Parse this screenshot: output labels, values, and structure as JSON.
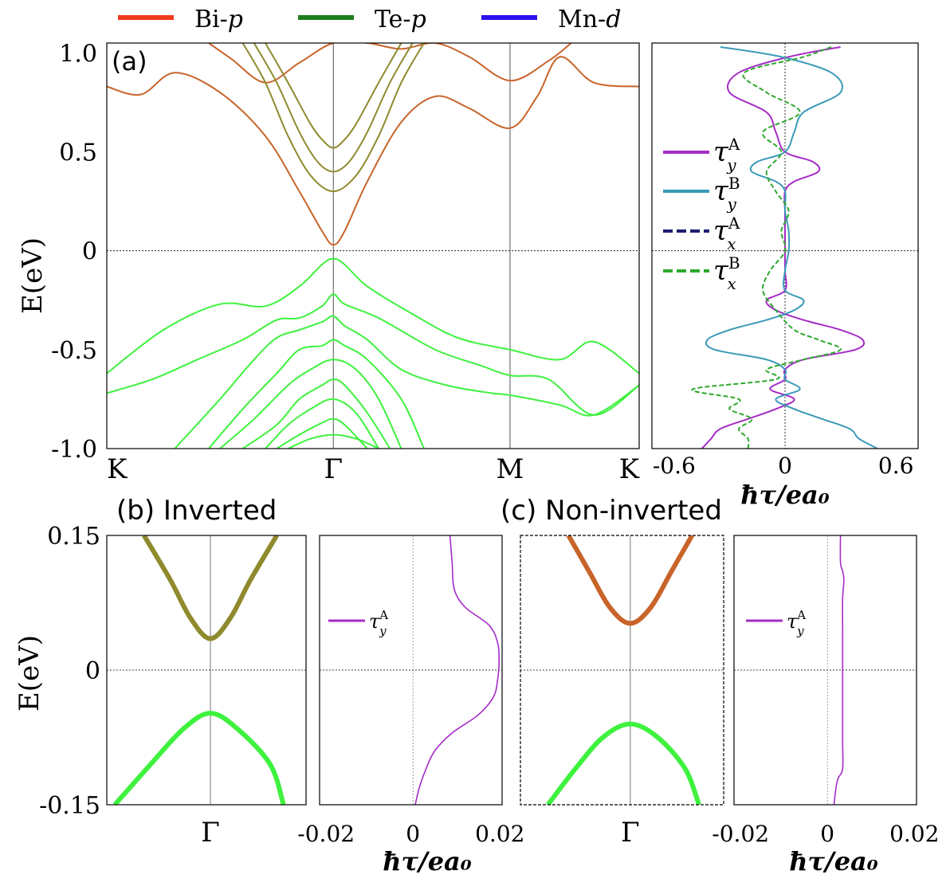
{
  "legend": {
    "items": [
      {
        "name": "Bi-",
        "italic": "p",
        "color": "#f03a1e"
      },
      {
        "name": "Te-",
        "italic": "p",
        "color": "#1e7d1e"
      },
      {
        "name": "Mn-",
        "italic": "d",
        "color": "#2b10f0"
      }
    ]
  },
  "colors": {
    "orange": "#c8642a",
    "olive": "#8f8a2e",
    "green": "#3ef23e",
    "magenta": "#a52cc7",
    "cyan": "#3a9ab8",
    "navy": "#1e1e70",
    "dgreen": "#2ea82e"
  },
  "torque_legend": {
    "ty_A": {
      "base": "τ",
      "sub": "y",
      "sup": "A"
    },
    "ty_B": {
      "base": "τ",
      "sub": "y",
      "sup": "B"
    },
    "tx_A": {
      "base": "τ",
      "sub": "x",
      "sup": "A"
    },
    "tx_B": {
      "base": "τ",
      "sub": "x",
      "sup": "B"
    }
  },
  "chart_data": [
    {
      "id": "a",
      "type": "line",
      "panel_label": "(a)",
      "ylabel": "E(eV)",
      "ylim": [
        -1.0,
        1.05
      ],
      "ytick_labels": [
        "1.0",
        "0.5",
        "0",
        "-0.5",
        "-1.0"
      ],
      "ytick_values": [
        1.0,
        0.5,
        0,
        -0.5,
        -1.0
      ],
      "xtick_labels": [
        "K",
        "Γ",
        "M",
        "K"
      ],
      "xtick_positions": [
        0,
        1,
        1.78,
        2.35
      ],
      "series": [
        {
          "name": "CB1",
          "color": "orange",
          "x": [
            0,
            0.15,
            0.3,
            0.5,
            0.7,
            0.85,
            0.95,
            1.0,
            1.05,
            1.15,
            1.3,
            1.45,
            1.6,
            1.78,
            1.9,
            2.0,
            2.15,
            2.35
          ],
          "y": [
            0.83,
            0.79,
            0.9,
            0.8,
            0.58,
            0.3,
            0.1,
            0.03,
            0.1,
            0.35,
            0.65,
            0.78,
            0.72,
            0.62,
            0.78,
            0.98,
            0.85,
            0.83
          ]
        },
        {
          "name": "CB1b",
          "color": "orange",
          "x": [
            0.45,
            0.55,
            0.7,
            0.85,
            1.0,
            1.15,
            1.3,
            1.45,
            1.6,
            1.78,
            1.95,
            2.05
          ],
          "y": [
            1.05,
            0.97,
            0.85,
            0.95,
            1.05,
            1.05,
            1.02,
            1.05,
            0.98,
            0.86,
            0.96,
            1.05
          ]
        },
        {
          "name": "CB2",
          "color": "olive",
          "x": [
            0.6,
            0.7,
            0.8,
            0.9,
            1.0,
            1.1,
            1.2,
            1.3,
            1.4
          ],
          "y": [
            1.05,
            0.85,
            0.58,
            0.38,
            0.3,
            0.38,
            0.58,
            0.85,
            1.05
          ]
        },
        {
          "name": "CB3",
          "color": "olive",
          "x": [
            0.65,
            0.75,
            0.85,
            0.93,
            1.0,
            1.07,
            1.15,
            1.25,
            1.35
          ],
          "y": [
            1.05,
            0.85,
            0.6,
            0.45,
            0.4,
            0.45,
            0.6,
            0.85,
            1.05
          ]
        },
        {
          "name": "CB4",
          "color": "olive",
          "x": [
            0.7,
            0.8,
            0.9,
            0.96,
            1.0,
            1.04,
            1.1,
            1.2,
            1.3
          ],
          "y": [
            1.05,
            0.85,
            0.64,
            0.55,
            0.52,
            0.55,
            0.64,
            0.85,
            1.05
          ]
        },
        {
          "name": "VB1",
          "color": "green",
          "x": [
            0,
            0.25,
            0.5,
            0.7,
            0.85,
            0.95,
            1.0,
            1.05,
            1.15,
            1.35,
            1.55,
            1.78,
            2.0,
            2.15,
            2.35
          ],
          "y": [
            -0.62,
            -0.4,
            -0.27,
            -0.28,
            -0.18,
            -0.07,
            -0.04,
            -0.07,
            -0.18,
            -0.32,
            -0.44,
            -0.5,
            -0.55,
            -0.46,
            -0.62
          ]
        },
        {
          "name": "VB2",
          "color": "green",
          "x": [
            0,
            0.2,
            0.4,
            0.6,
            0.75,
            0.85,
            0.95,
            1.0,
            1.05,
            1.2,
            1.45,
            1.65,
            1.78,
            1.95,
            2.15,
            2.35
          ],
          "y": [
            -0.72,
            -0.65,
            -0.55,
            -0.45,
            -0.35,
            -0.34,
            -0.28,
            -0.22,
            -0.27,
            -0.34,
            -0.5,
            -0.58,
            -0.63,
            -0.65,
            -0.83,
            -0.68
          ]
        },
        {
          "name": "VB3",
          "color": "green",
          "x": [
            0.3,
            0.5,
            0.65,
            0.75,
            0.85,
            0.95,
            1.0,
            1.05,
            1.15,
            1.3,
            1.5,
            1.7,
            1.78,
            2.0,
            2.15,
            2.35
          ],
          "y": [
            -1.0,
            -0.75,
            -0.55,
            -0.44,
            -0.4,
            -0.36,
            -0.33,
            -0.38,
            -0.45,
            -0.6,
            -0.68,
            -0.72,
            -0.73,
            -0.78,
            -0.83,
            -0.68
          ]
        },
        {
          "name": "VB4",
          "color": "green",
          "x": [
            0.45,
            0.6,
            0.75,
            0.85,
            0.95,
            1.0,
            1.05,
            1.15,
            1.3,
            1.4
          ],
          "y": [
            -1.0,
            -0.8,
            -0.62,
            -0.5,
            -0.48,
            -0.45,
            -0.48,
            -0.55,
            -0.75,
            -1.0
          ]
        },
        {
          "name": "VB5",
          "color": "green",
          "x": [
            0.5,
            0.65,
            0.8,
            0.9,
            1.0,
            1.1,
            1.2,
            1.3
          ],
          "y": [
            -1.0,
            -0.85,
            -0.68,
            -0.6,
            -0.55,
            -0.6,
            -0.75,
            -1.0
          ]
        },
        {
          "name": "VB6",
          "color": "green",
          "x": [
            0.6,
            0.75,
            0.85,
            0.95,
            1.0,
            1.05,
            1.15,
            1.25
          ],
          "y": [
            -1.0,
            -0.88,
            -0.75,
            -0.68,
            -0.65,
            -0.68,
            -0.82,
            -1.0
          ]
        },
        {
          "name": "VB7",
          "color": "green",
          "x": [
            0.7,
            0.8,
            0.9,
            1.0,
            1.1,
            1.2
          ],
          "y": [
            -1.0,
            -0.88,
            -0.8,
            -0.75,
            -0.82,
            -1.0
          ]
        },
        {
          "name": "VB8",
          "color": "green",
          "x": [
            0.75,
            0.85,
            0.95,
            1.0,
            1.05,
            1.15
          ],
          "y": [
            -1.0,
            -0.93,
            -0.87,
            -0.85,
            -0.88,
            -1.0
          ]
        },
        {
          "name": "VB9",
          "color": "green",
          "x": [
            0.8,
            0.9,
            1.0,
            1.1,
            1.2
          ],
          "y": [
            -1.0,
            -0.95,
            -0.93,
            -0.95,
            -1.0
          ]
        }
      ]
    },
    {
      "id": "a-torque",
      "type": "line",
      "xlabel": "ħτ/ea₀",
      "xlim": [
        -0.72,
        0.72
      ],
      "ylim": [
        -1.0,
        1.05
      ],
      "xtick_labels": [
        "-0.6",
        "0",
        "0.6"
      ],
      "xtick_values": [
        -0.6,
        0,
        0.6
      ],
      "series": [
        {
          "name": "τ_y^A",
          "color": "magenta",
          "dash": false,
          "y": [
            1.03,
            0.98,
            0.9,
            0.8,
            0.7,
            0.6,
            0.5,
            0.45,
            0.4,
            0.35,
            0.3,
            0.2,
            0.1,
            0.0,
            -0.1,
            -0.2,
            -0.25,
            -0.3,
            -0.35,
            -0.4,
            -0.45,
            -0.5,
            -0.55,
            -0.6,
            -0.65,
            -0.7,
            -0.75,
            -0.8,
            -0.85,
            -0.9,
            -0.95,
            -1.0
          ],
          "x": [
            0.3,
            0.02,
            -0.25,
            -0.3,
            -0.1,
            -0.05,
            0.0,
            0.15,
            0.18,
            0.05,
            0.0,
            0.0,
            0.0,
            0.0,
            0.0,
            0.0,
            -0.1,
            -0.05,
            0.1,
            0.3,
            0.42,
            0.38,
            0.1,
            0.0,
            0.0,
            -0.08,
            0.05,
            -0.05,
            -0.2,
            -0.35,
            -0.4,
            -0.45
          ]
        },
        {
          "name": "τ_y^B",
          "color": "cyan",
          "dash": false,
          "y": [
            1.03,
            0.98,
            0.9,
            0.8,
            0.7,
            0.6,
            0.5,
            0.45,
            0.4,
            0.35,
            0.3,
            0.2,
            0.1,
            0.0,
            -0.1,
            -0.2,
            -0.25,
            -0.3,
            -0.35,
            -0.4,
            -0.45,
            -0.5,
            -0.55,
            -0.6,
            -0.65,
            -0.7,
            -0.75,
            -0.8,
            -0.85,
            -0.9,
            -0.95,
            -1.0
          ],
          "x": [
            -0.35,
            -0.02,
            0.25,
            0.3,
            0.1,
            0.05,
            0.0,
            -0.15,
            -0.18,
            -0.05,
            0.0,
            0.0,
            0.02,
            0.02,
            0.0,
            0.0,
            0.1,
            0.05,
            -0.1,
            -0.3,
            -0.42,
            -0.38,
            -0.1,
            0.0,
            0.0,
            0.08,
            -0.05,
            0.05,
            0.2,
            0.35,
            0.4,
            0.5
          ]
        },
        {
          "name": "τ_x^A",
          "color": "navy",
          "dash": true,
          "y": [
            0.0
          ],
          "x": [
            0.0
          ]
        },
        {
          "name": "τ_x^B",
          "color": "dgreen",
          "dash": true,
          "y": [
            1.03,
            0.98,
            0.9,
            0.8,
            0.7,
            0.6,
            0.5,
            0.4,
            0.3,
            0.2,
            0.1,
            0.0,
            -0.1,
            -0.2,
            -0.3,
            -0.4,
            -0.45,
            -0.5,
            -0.55,
            -0.6,
            -0.65,
            -0.7,
            -0.75,
            -0.8,
            -0.85,
            -0.9,
            -0.95,
            -1.0
          ],
          "x": [
            0.25,
            0.1,
            -0.22,
            -0.1,
            0.08,
            -0.12,
            -0.02,
            -0.1,
            -0.05,
            0.02,
            -0.02,
            0.0,
            -0.08,
            -0.12,
            -0.05,
            0.05,
            0.18,
            0.3,
            0.1,
            -0.1,
            -0.05,
            -0.5,
            -0.25,
            -0.3,
            -0.18,
            -0.25,
            -0.2,
            -0.2
          ]
        }
      ]
    },
    {
      "id": "b",
      "type": "line",
      "panel_label": "(b) Inverted",
      "ylabel": "E(eV)",
      "ylim": [
        -0.15,
        0.15
      ],
      "ytick_labels": [
        "0.15",
        "0",
        "-0.15"
      ],
      "ytick_values": [
        0.15,
        0,
        -0.15
      ],
      "xtick_labels": [
        "Γ"
      ],
      "series": [
        {
          "name": "CB",
          "color": "olive",
          "x": [
            -0.5,
            -0.3,
            -0.15,
            0,
            0.15,
            0.3,
            0.5
          ],
          "y": [
            0.15,
            0.1,
            0.058,
            0.035,
            0.058,
            0.1,
            0.15
          ]
        },
        {
          "name": "VB",
          "color": "green",
          "x": [
            -0.72,
            -0.45,
            -0.2,
            0,
            0.2,
            0.45,
            0.55
          ],
          "y": [
            -0.15,
            -0.105,
            -0.065,
            -0.048,
            -0.065,
            -0.105,
            -0.15
          ]
        }
      ]
    },
    {
      "id": "b-torque",
      "type": "line",
      "xlabel": "ħτ/ea₀",
      "xlim": [
        -0.02,
        0.02
      ],
      "ylim": [
        -0.15,
        0.15
      ],
      "xtick_labels": [
        "-0.02",
        "0",
        "0.02"
      ],
      "xtick_values": [
        -0.02,
        0,
        0.02
      ],
      "series": [
        {
          "name": "τ_y^A",
          "color": "magenta",
          "y": [
            0.15,
            0.12,
            0.09,
            0.07,
            0.05,
            0.03,
            0.01,
            -0.01,
            -0.03,
            -0.05,
            -0.07,
            -0.09,
            -0.11,
            -0.13,
            -0.15
          ],
          "x": [
            0.0085,
            0.009,
            0.0095,
            0.012,
            0.0175,
            0.0195,
            0.0198,
            0.0195,
            0.0185,
            0.015,
            0.009,
            0.005,
            0.003,
            0.0015,
            0.0005
          ]
        }
      ]
    },
    {
      "id": "c",
      "type": "line",
      "panel_label": "(c) Non-inverted",
      "ylim": [
        -0.15,
        0.15
      ],
      "xtick_labels": [
        "Γ"
      ],
      "series": [
        {
          "name": "CB",
          "color": "orange",
          "x": [
            -0.45,
            -0.3,
            -0.15,
            0,
            0.15,
            0.3,
            0.45
          ],
          "y": [
            0.15,
            0.11,
            0.07,
            0.052,
            0.07,
            0.11,
            0.15
          ]
        },
        {
          "name": "VB",
          "color": "green",
          "x": [
            -0.6,
            -0.4,
            -0.2,
            0,
            0.2,
            0.4,
            0.5
          ],
          "y": [
            -0.15,
            -0.11,
            -0.075,
            -0.06,
            -0.075,
            -0.11,
            -0.15
          ]
        }
      ]
    },
    {
      "id": "c-torque",
      "type": "line",
      "xlabel": "ħτ/ea₀",
      "xlim": [
        -0.02,
        0.02
      ],
      "ylim": [
        -0.15,
        0.15
      ],
      "xtick_labels": [
        "-0.02",
        "0",
        "0.02"
      ],
      "xtick_values": [
        -0.02,
        0,
        0.02
      ],
      "series": [
        {
          "name": "τ_y^A",
          "color": "magenta",
          "y": [
            0.15,
            0.12,
            0.11,
            0.1,
            0.08,
            0.04,
            0.0,
            -0.04,
            -0.08,
            -0.11,
            -0.12,
            -0.13,
            -0.15
          ],
          "x": [
            0.003,
            0.003,
            0.0035,
            0.0038,
            0.0035,
            0.0035,
            0.0035,
            0.0035,
            0.0035,
            0.0035,
            0.0025,
            0.002,
            0.0015
          ]
        }
      ]
    }
  ]
}
